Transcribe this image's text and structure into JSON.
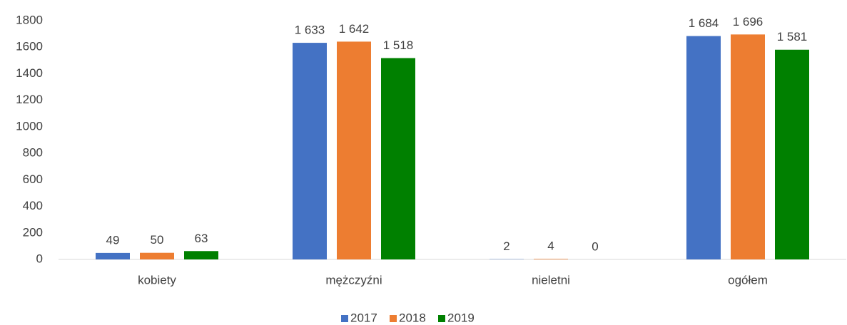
{
  "chart_data": {
    "type": "bar",
    "categories": [
      "kobiety",
      "mężczyźni",
      "nieletni",
      "ogółem"
    ],
    "series": [
      {
        "name": "2017",
        "color": "#4472c4",
        "values": [
          49,
          1633,
          2,
          1684
        ],
        "value_labels": [
          "49",
          "1 633",
          "2",
          "1 684"
        ]
      },
      {
        "name": "2018",
        "color": "#ed7d31",
        "values": [
          50,
          1642,
          4,
          1696
        ],
        "value_labels": [
          "50",
          "1 642",
          "4",
          "1 696"
        ]
      },
      {
        "name": "2019",
        "color": "#008000",
        "values": [
          63,
          1518,
          0,
          1581
        ],
        "value_labels": [
          "63",
          "1 518",
          "0",
          "1 581"
        ]
      }
    ],
    "ylim": [
      0,
      1800
    ],
    "yticks": [
      0,
      200,
      400,
      600,
      800,
      1000,
      1200,
      1400,
      1600,
      1800
    ],
    "grid": false,
    "legend": "bottom"
  }
}
